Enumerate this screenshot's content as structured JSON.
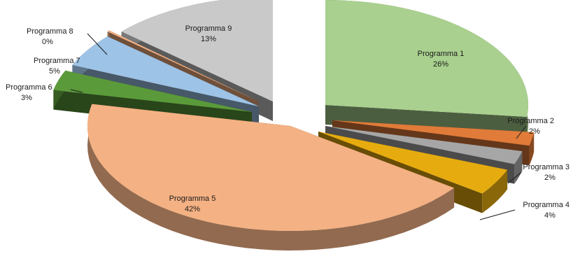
{
  "chart_data": {
    "type": "pie",
    "style": "exploded-3d",
    "categories": [
      "Programma 1",
      "Programma 2",
      "Programma 3",
      "Programma 4",
      "Programma 5",
      "Programma 6",
      "Programma 7",
      "Programma 8",
      "Programma 9"
    ],
    "values": [
      26,
      2,
      2,
      4,
      42,
      3,
      5,
      0,
      13
    ],
    "value_labels": [
      "26%",
      "2%",
      "2%",
      "4%",
      "42%",
      "3%",
      "5%",
      "0%",
      "13%"
    ],
    "colors": [
      "#a9d08e",
      "#e07b39",
      "#a6a6a6",
      "#e6ac0f",
      "#f4b183",
      "#5b9a3a",
      "#9dc3e6",
      "#f4b183",
      "#c9c9c9"
    ],
    "title": "",
    "legend": "none",
    "data_labels": "category name and percentage"
  }
}
